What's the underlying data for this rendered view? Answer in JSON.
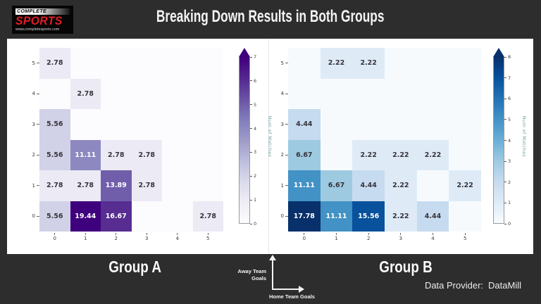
{
  "header": {
    "title": "Breaking Down Results in Both Groups",
    "logo": {
      "top_text": "COMPLETE",
      "main_text": "SPORTS",
      "url_text": "www.completesports.com",
      "brand_red": "#e51c25"
    }
  },
  "chart_data": [
    {
      "type": "heatmap",
      "title": "Group A",
      "xlabel": "Home Team Goals",
      "ylabel": "Away Team Goals",
      "x_ticks": [
        "0",
        "1",
        "2",
        "3",
        "4",
        "5"
      ],
      "y_ticks": [
        "5",
        "4",
        "3",
        "2",
        "1",
        "0"
      ],
      "values_unit": "percent of matches",
      "zero_color": "#fcfbfd",
      "annot_color": "#37343c",
      "rows": [
        [
          {
            "v": "2.78",
            "c": "#eceaf4",
            "w": false
          },
          null,
          null,
          null,
          null,
          null
        ],
        [
          null,
          {
            "v": "2.78",
            "c": "#eceaf4",
            "w": false
          },
          null,
          null,
          null,
          null
        ],
        [
          {
            "v": "5.56",
            "c": "#d1d2e7",
            "w": false
          },
          null,
          null,
          null,
          null,
          null
        ],
        [
          {
            "v": "5.56",
            "c": "#d1d2e7",
            "w": false
          },
          {
            "v": "11.11",
            "c": "#8d89c0",
            "w": true
          },
          {
            "v": "2.78",
            "c": "#eceaf4",
            "w": false
          },
          {
            "v": "2.78",
            "c": "#eceaf4",
            "w": false
          },
          null,
          null
        ],
        [
          {
            "v": "2.78",
            "c": "#eceaf4",
            "w": false
          },
          {
            "v": "2.78",
            "c": "#eceaf4",
            "w": false
          },
          {
            "v": "13.89",
            "c": "#705eaa",
            "w": true
          },
          {
            "v": "2.78",
            "c": "#eceaf4",
            "w": false
          },
          null,
          null
        ],
        [
          {
            "v": "5.56",
            "c": "#d1d2e7",
            "w": false
          },
          {
            "v": "19.44",
            "c": "#3f007d",
            "w": true
          },
          {
            "v": "16.67",
            "c": "#572d92",
            "w": true
          },
          null,
          null,
          {
            "v": "2.78",
            "c": "#eceaf4",
            "w": false
          }
        ]
      ],
      "colorbar": {
        "label": "Num of Matches",
        "label_color": "#6fa39e",
        "ticks": [
          "0",
          "1",
          "2",
          "3",
          "4",
          "5",
          "6",
          "7"
        ],
        "stops": [
          "#fcfbfd",
          "#efedf5",
          "#dadaeb",
          "#bcbddc",
          "#9e9ac8",
          "#807dba",
          "#6a51a3",
          "#54278f",
          "#3f007d"
        ]
      }
    },
    {
      "type": "heatmap",
      "title": "Group B",
      "xlabel": "Home Team Goals",
      "ylabel": "Away Team Goals",
      "x_ticks": [
        "0",
        "1",
        "2",
        "3",
        "4",
        "5"
      ],
      "y_ticks": [
        "5",
        "4",
        "3",
        "2",
        "1",
        "0"
      ],
      "values_unit": "percent of matches",
      "zero_color": "#f7fafd",
      "annot_color": "#37343c",
      "rows": [
        [
          null,
          {
            "v": "2.22",
            "c": "#deebf7",
            "w": false
          },
          {
            "v": "2.22",
            "c": "#deebf7",
            "w": false
          },
          null,
          null,
          null
        ],
        [
          null,
          null,
          null,
          null,
          null,
          null
        ],
        [
          {
            "v": "4.44",
            "c": "#c6dbef",
            "w": false
          },
          null,
          null,
          null,
          null,
          null
        ],
        [
          {
            "v": "6.67",
            "c": "#9ecae1",
            "w": false
          },
          null,
          {
            "v": "2.22",
            "c": "#deebf7",
            "w": false
          },
          {
            "v": "2.22",
            "c": "#deebf7",
            "w": false
          },
          {
            "v": "2.22",
            "c": "#deebf7",
            "w": false
          },
          null
        ],
        [
          {
            "v": "11.11",
            "c": "#4292c6",
            "w": true
          },
          {
            "v": "6.67",
            "c": "#9ecae1",
            "w": false
          },
          {
            "v": "4.44",
            "c": "#c6dbef",
            "w": false
          },
          {
            "v": "2.22",
            "c": "#deebf7",
            "w": false
          },
          null,
          {
            "v": "2.22",
            "c": "#deebf7",
            "w": false
          }
        ],
        [
          {
            "v": "17.78",
            "c": "#08306b",
            "w": true
          },
          {
            "v": "11.11",
            "c": "#4292c6",
            "w": true
          },
          {
            "v": "15.56",
            "c": "#08519c",
            "w": true
          },
          {
            "v": "2.22",
            "c": "#deebf7",
            "w": false
          },
          {
            "v": "4.44",
            "c": "#c6dbef",
            "w": false
          },
          null
        ]
      ],
      "colorbar": {
        "label": "Num of Matches",
        "label_color": "#6fa39e",
        "ticks": [
          "0",
          "1",
          "2",
          "3",
          "4",
          "5",
          "6",
          "7",
          "8"
        ],
        "stops": [
          "#f7fbff",
          "#deebf7",
          "#c6dbef",
          "#9ecae1",
          "#6baed6",
          "#4292c6",
          "#2171b5",
          "#08519c",
          "#08306b"
        ]
      }
    }
  ],
  "footer": {
    "axis_key": {
      "away_line1": "Away Team",
      "away_line2": "Goals",
      "home_label": "Home Team Goals"
    },
    "provider_label": "Data Provider:",
    "provider_name": "DataMill"
  }
}
